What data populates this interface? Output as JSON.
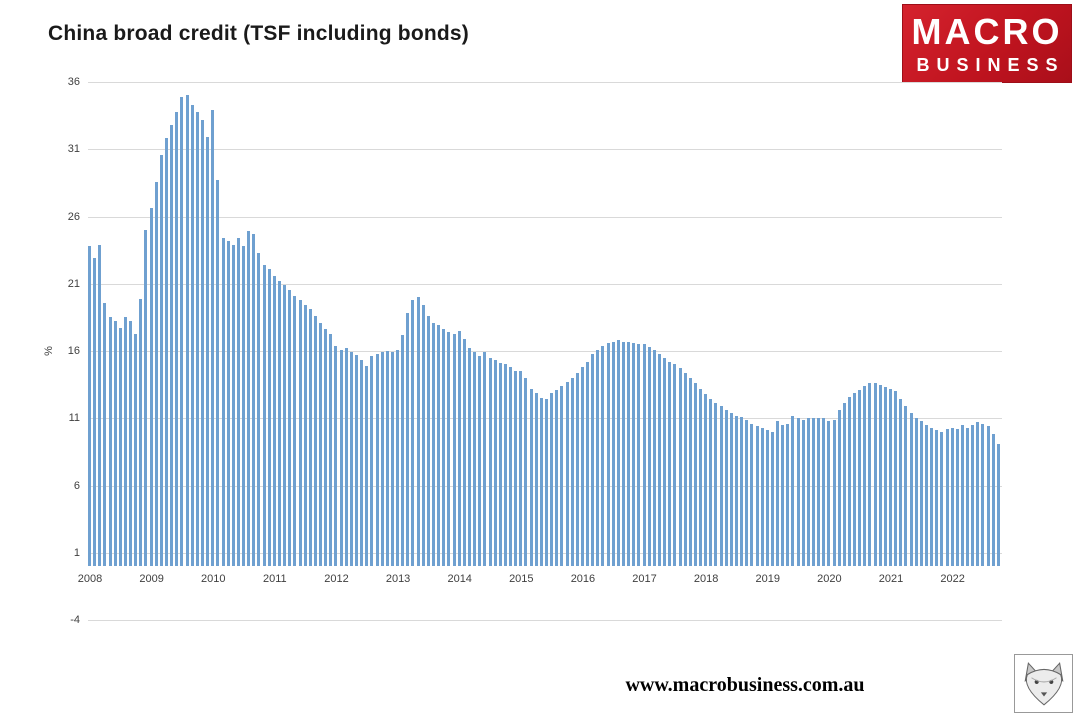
{
  "title": "China broad credit (TSF including bonds)",
  "logo": {
    "line1": "MACRO",
    "line2": "BUSINESS",
    "bg_color": "#C0141F",
    "text_color": "#FFFFFF"
  },
  "footer": {
    "url": "www.macrobusiness.com.au"
  },
  "icons": {
    "fox_logo": "fox-head-sketch"
  },
  "chart_data": {
    "type": "bar",
    "title": "China broad credit (TSF including bonds)",
    "xlabel": "",
    "ylabel": "%",
    "ylim": [
      -4,
      36
    ],
    "yticks": [
      -4,
      1,
      6,
      11,
      16,
      21,
      26,
      31,
      36
    ],
    "grid": true,
    "bar_color": "#6FA0D0",
    "gridline_color": "#d9d9d9",
    "x_start": "2008-01",
    "x_frequency": "monthly",
    "xtick_labels": [
      "2008",
      "2009",
      "2010",
      "2011",
      "2012",
      "2013",
      "2014",
      "2015",
      "2016",
      "2017",
      "2018",
      "2019",
      "2020",
      "2021",
      "2022"
    ],
    "values": [
      23.8,
      22.9,
      23.9,
      19.6,
      18.5,
      18.2,
      17.7,
      18.5,
      18.2,
      17.3,
      19.9,
      25.0,
      26.6,
      28.6,
      30.6,
      31.8,
      32.8,
      33.8,
      34.9,
      35.0,
      34.3,
      33.8,
      33.2,
      31.9,
      33.9,
      28.7,
      24.4,
      24.2,
      23.9,
      24.4,
      23.8,
      24.9,
      24.7,
      23.3,
      22.4,
      22.1,
      21.6,
      21.2,
      20.9,
      20.5,
      20.1,
      19.8,
      19.4,
      19.1,
      18.6,
      18.1,
      17.6,
      17.3,
      16.4,
      16.1,
      16.2,
      15.9,
      15.7,
      15.3,
      14.9,
      15.6,
      15.8,
      15.9,
      16.0,
      15.9,
      16.1,
      17.2,
      18.8,
      19.8,
      20.0,
      19.4,
      18.6,
      18.1,
      17.9,
      17.6,
      17.4,
      17.3,
      17.5,
      16.9,
      16.2,
      15.9,
      15.6,
      15.9,
      15.5,
      15.3,
      15.1,
      15.0,
      14.8,
      14.5,
      14.5,
      14.0,
      13.2,
      12.9,
      12.5,
      12.4,
      12.9,
      13.1,
      13.4,
      13.7,
      14.0,
      14.4,
      14.8,
      15.2,
      15.8,
      16.1,
      16.4,
      16.6,
      16.7,
      16.8,
      16.7,
      16.7,
      16.6,
      16.5,
      16.5,
      16.3,
      16.1,
      15.8,
      15.5,
      15.2,
      15.0,
      14.7,
      14.4,
      14.0,
      13.6,
      13.2,
      12.8,
      12.4,
      12.1,
      11.9,
      11.6,
      11.4,
      11.2,
      11.1,
      10.9,
      10.6,
      10.4,
      10.3,
      10.1,
      10.0,
      10.8,
      10.5,
      10.6,
      11.2,
      11.0,
      10.9,
      11.0,
      11.0,
      11.0,
      11.0,
      10.8,
      10.9,
      11.6,
      12.1,
      12.6,
      12.9,
      13.1,
      13.4,
      13.6,
      13.6,
      13.5,
      13.3,
      13.2,
      13.0,
      12.4,
      11.9,
      11.4,
      11.0,
      10.8,
      10.5,
      10.3,
      10.1,
      10.0,
      10.2,
      10.3,
      10.2,
      10.5,
      10.3,
      10.5,
      10.7,
      10.6,
      10.4,
      9.8,
      9.1
    ]
  }
}
